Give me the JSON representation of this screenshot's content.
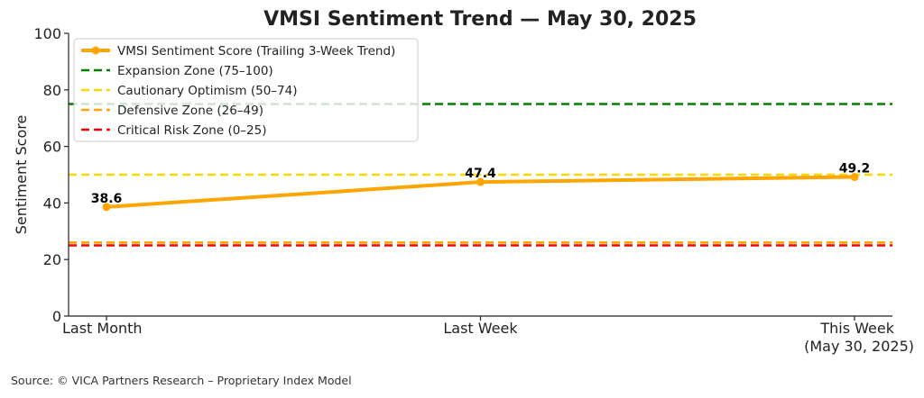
{
  "source_note": "Source: © VICA Partners Research – Proprietary Index Model",
  "chart_data": {
    "type": "line",
    "title": "VMSI Sentiment Trend — May 30, 2025",
    "xlabel": "",
    "ylabel": "Sentiment Score",
    "ylim": [
      0,
      100
    ],
    "yticks": [
      0,
      20,
      40,
      60,
      80,
      100
    ],
    "grid": false,
    "legend_position": "upper-left",
    "categories": [
      [
        "Last Month"
      ],
      [
        "Last Week"
      ],
      [
        "This Week",
        "(May 30, 2025)"
      ]
    ],
    "series": [
      {
        "name": "VMSI Sentiment Score (Trailing 3-Week Trend)",
        "color": "#FFA500",
        "values": [
          38.6,
          47.4,
          49.2
        ],
        "data_labels": [
          "38.6",
          "47.4",
          "49.2"
        ]
      }
    ],
    "reference_lines": [
      {
        "name": "Expansion Zone (75–100)",
        "y": 75,
        "color": "#008000"
      },
      {
        "name": "Cautionary Optimism (50–74)",
        "y": 50,
        "color": "#FFD700"
      },
      {
        "name": "Defensive Zone (26–49)",
        "y": 26,
        "color": "#FFA500"
      },
      {
        "name": "Critical Risk Zone (0–25)",
        "y": 25,
        "color": "#FF0000"
      }
    ]
  }
}
